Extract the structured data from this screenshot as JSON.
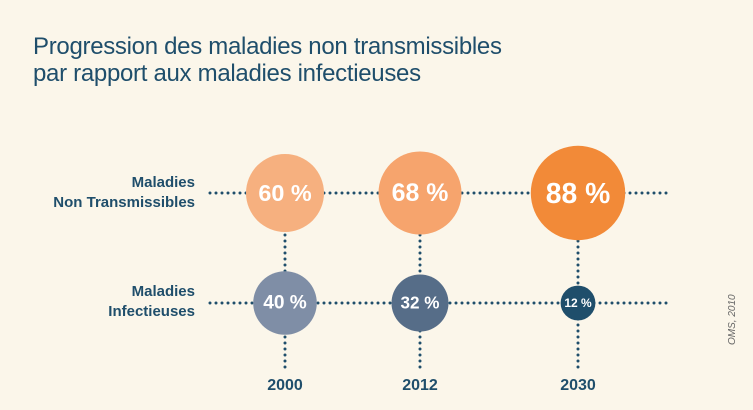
{
  "title": {
    "line1": "Progression des maladies non transmissibles",
    "line2": "par rapport aux maladies infectieuses"
  },
  "rows": {
    "ncd": {
      "line1": "Maladies",
      "line2": "Non Transmissibles"
    },
    "infectious": {
      "line1": "Maladies",
      "line2": "Infectieuses"
    }
  },
  "source": "OMS, 2010",
  "colors": {
    "title": "#1f4e6b",
    "ncd": [
      "#f6b07f",
      "#f6a46d",
      "#f28a38"
    ],
    "infectious": [
      "#7f8ea6",
      "#566d88",
      "#1f4e6b"
    ]
  },
  "chart_data": {
    "type": "bubble",
    "categories": [
      "2000",
      "2012",
      "2030"
    ],
    "series": [
      {
        "name": "Maladies Non Transmissibles",
        "values": [
          60,
          68,
          88
        ],
        "labels": [
          "60 %",
          "68 %",
          "88 %"
        ]
      },
      {
        "name": "Maladies Infectieuses",
        "values": [
          40,
          32,
          12
        ],
        "labels": [
          "40 %",
          "32 %",
          "12 %"
        ]
      }
    ],
    "unit": "%"
  }
}
